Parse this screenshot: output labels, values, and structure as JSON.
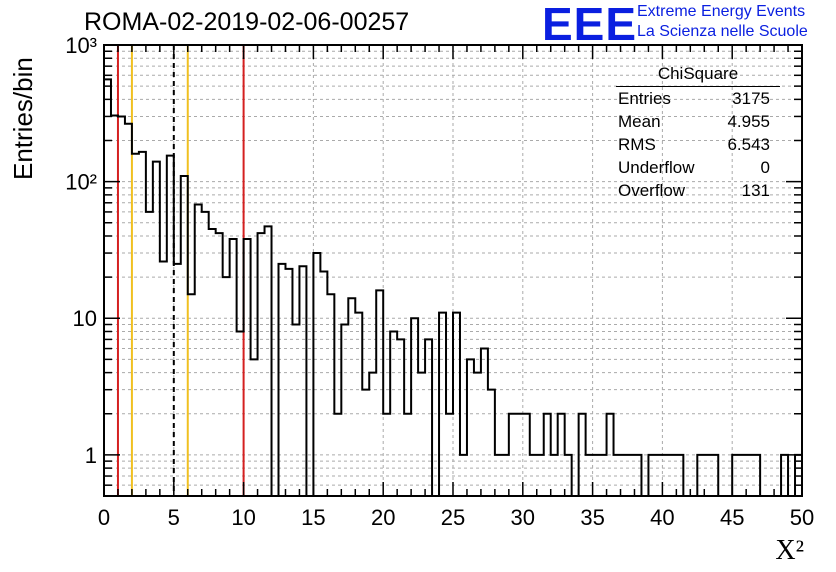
{
  "header": {
    "run_title": "ROMA-02-2019-02-06-00257",
    "logo_text": "EEE",
    "logo_line1": "Extreme Energy Events",
    "logo_line2": "La Scienza nelle Scuole"
  },
  "stats_box": {
    "title": "ChiSquare",
    "rows": [
      {
        "label": "Entries",
        "value": "3175"
      },
      {
        "label": "Mean",
        "value": "4.955"
      },
      {
        "label": "RMS",
        "value": "6.543"
      },
      {
        "label": "Underflow",
        "value": "0"
      },
      {
        "label": "Overflow",
        "value": "131"
      }
    ]
  },
  "colors": {
    "histogram": "#000000",
    "red_lines": "#d42020",
    "yellow_lines": "#f0c020",
    "logo": "#0a1fe0",
    "grid": "#aaaaaa"
  },
  "chart_data": {
    "type": "histogram",
    "xlabel": "X²",
    "ylabel": "Entries/bin",
    "xlim": [
      0,
      50
    ],
    "ylim": [
      0.5,
      1000
    ],
    "yscale": "log",
    "grid": true,
    "bin_width": 0.5,
    "x_ticks": [
      "0",
      "5",
      "10",
      "15",
      "20",
      "25",
      "30",
      "35",
      "40",
      "45",
      "50"
    ],
    "y_ticks": [
      {
        "value": 1,
        "label": "1"
      },
      {
        "value": 10,
        "label": "10"
      },
      {
        "value": 100,
        "label": "10²"
      },
      {
        "value": 1000,
        "label": "10³"
      }
    ],
    "values": [
      560,
      305,
      300,
      265,
      160,
      165,
      60,
      140,
      26,
      155,
      25,
      110,
      15,
      68,
      60,
      45,
      42,
      20,
      38,
      8,
      38,
      5,
      42,
      47,
      0,
      25,
      23,
      9,
      24,
      0,
      30,
      22,
      15,
      2,
      9,
      14,
      11,
      3,
      4,
      16,
      2,
      8,
      7,
      2,
      10,
      4,
      7,
      0,
      11,
      2,
      11,
      1,
      5,
      4,
      6,
      3,
      1,
      1,
      2,
      2,
      2,
      1,
      1,
      2,
      1,
      2,
      1,
      0,
      2,
      1,
      1,
      1,
      2,
      1,
      1,
      1,
      1,
      0,
      1,
      1,
      1,
      1,
      1,
      0,
      0,
      1,
      1,
      1,
      0,
      0,
      1,
      1,
      1,
      1,
      0,
      0,
      0,
      1,
      0,
      1
    ],
    "vertical_lines": [
      {
        "x": 1,
        "color": "red",
        "style": "solid"
      },
      {
        "x": 2,
        "color": "yellow",
        "style": "solid"
      },
      {
        "x": 5,
        "color": "black",
        "style": "dashed"
      },
      {
        "x": 6,
        "color": "yellow",
        "style": "solid"
      },
      {
        "x": 10,
        "color": "red",
        "style": "solid"
      }
    ]
  }
}
